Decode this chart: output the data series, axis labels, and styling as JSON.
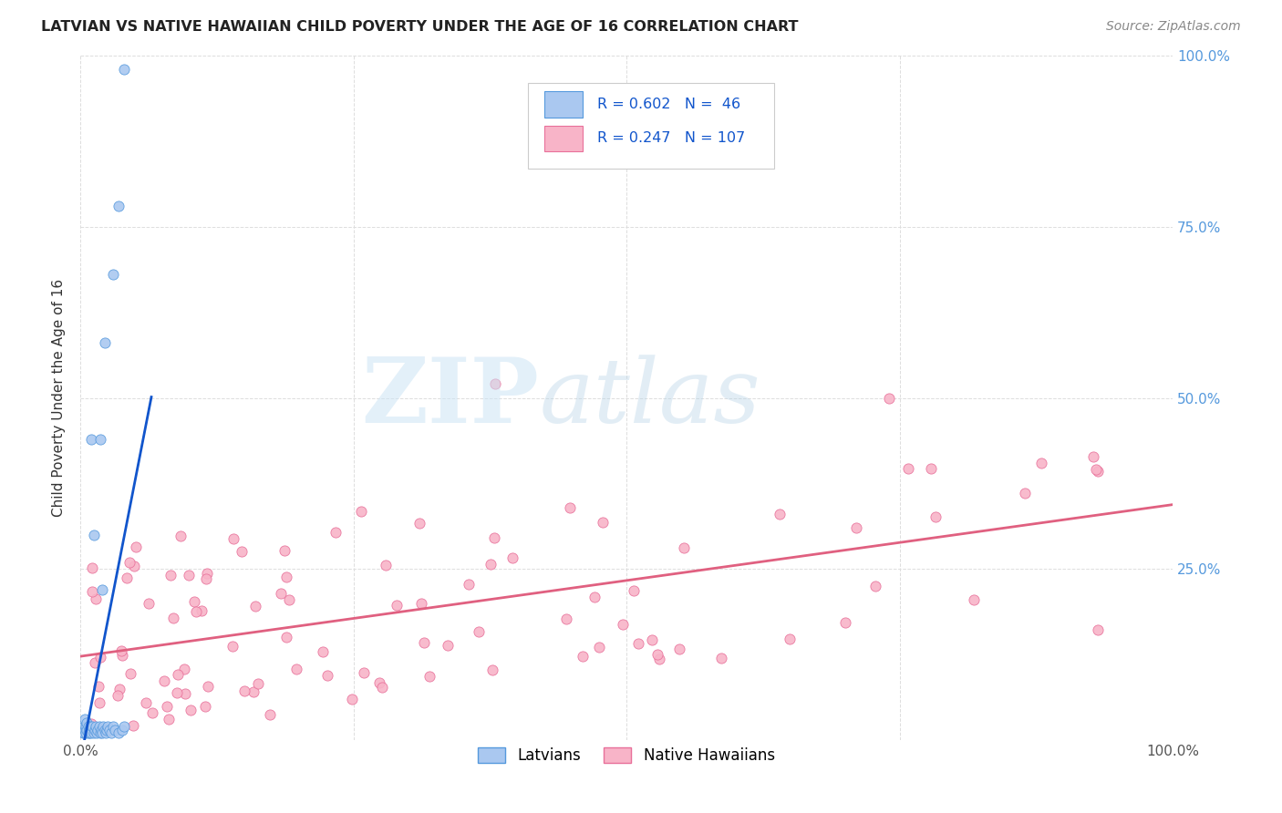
{
  "title": "LATVIAN VS NATIVE HAWAIIAN CHILD POVERTY UNDER THE AGE OF 16 CORRELATION CHART",
  "source": "Source: ZipAtlas.com",
  "ylabel": "Child Poverty Under the Age of 16",
  "latvian_R": 0.602,
  "latvian_N": 46,
  "hawaiian_R": 0.247,
  "hawaiian_N": 107,
  "latvian_color": "#aac8f0",
  "latvian_edge": "#5599dd",
  "hawaiian_color": "#f8b4c8",
  "hawaiian_edge": "#e8709a",
  "latvian_trend_color": "#1155cc",
  "hawaiian_trend_color": "#e06080",
  "background_color": "#ffffff",
  "grid_color": "#dddddd",
  "legend_text_color": "#1155cc",
  "right_tick_color": "#5599dd",
  "title_color": "#222222",
  "source_color": "#888888"
}
